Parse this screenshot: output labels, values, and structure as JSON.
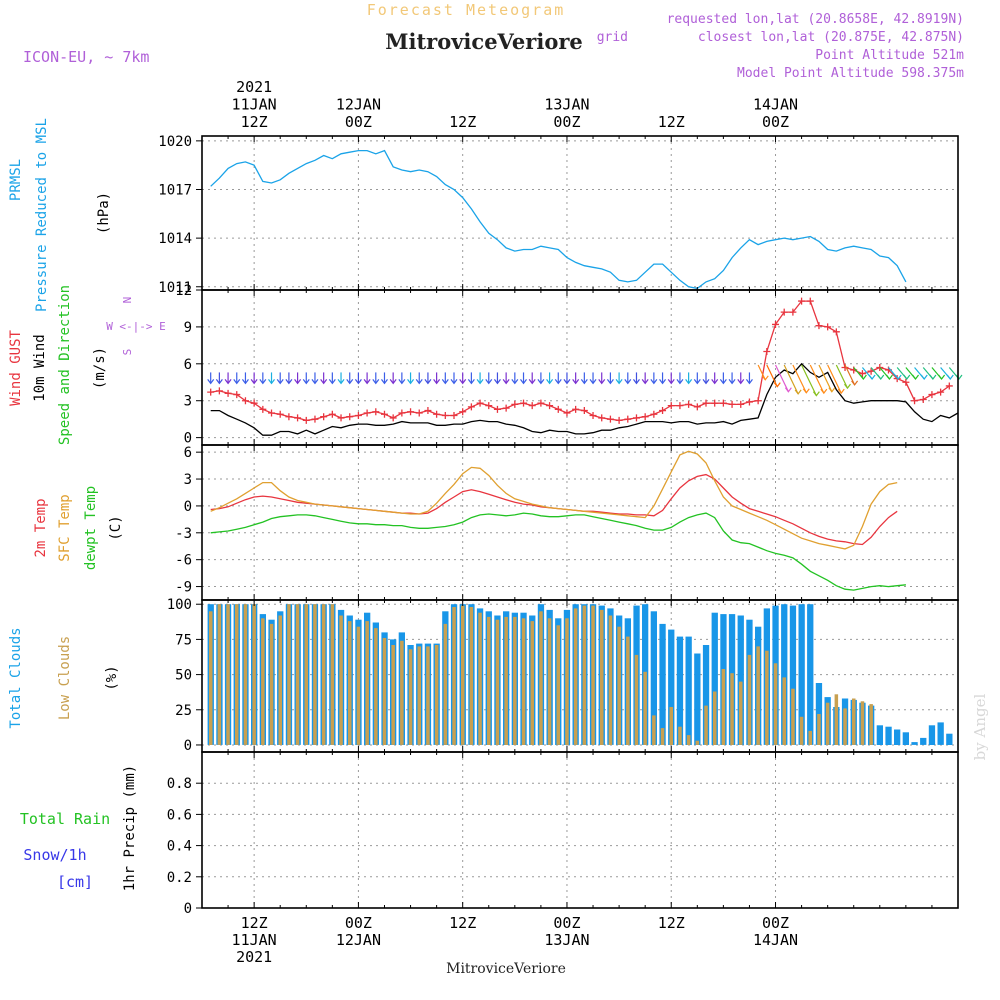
{
  "header": {
    "top_title": "Forecast Meteogram",
    "location": "MitroviceVeriore",
    "model": "ICON-EU, ~ 7km",
    "requested": "requested lon,lat (20.8658E, 42.8919N)",
    "closest": "closest lon,lat (20.875E, 42.875N)",
    "closest_prefix": "grid",
    "point_altitude": "Point Altitude 521m",
    "model_altitude": "Model Point Altitude 598.375m",
    "footer_location": "MitroviceVeriore",
    "watermark": "by Angel"
  },
  "time_axis": {
    "top_labels": [
      {
        "h": 6,
        "lines": [
          "2021",
          "11JAN",
          "12Z"
        ]
      },
      {
        "h": 18,
        "lines": [
          "12JAN",
          "00Z"
        ]
      },
      {
        "h": 30,
        "lines": [
          "12Z"
        ]
      },
      {
        "h": 42,
        "lines": [
          "13JAN",
          "00Z"
        ]
      },
      {
        "h": 54,
        "lines": [
          "12Z"
        ]
      },
      {
        "h": 66,
        "lines": [
          "14JAN",
          "00Z"
        ]
      }
    ],
    "bottom_labels": [
      {
        "h": 6,
        "lines": [
          "12Z",
          "11JAN",
          "2021"
        ]
      },
      {
        "h": 18,
        "lines": [
          "00Z",
          "12JAN"
        ]
      },
      {
        "h": 30,
        "lines": [
          "12Z"
        ]
      },
      {
        "h": 42,
        "lines": [
          "00Z",
          "13JAN"
        ]
      },
      {
        "h": 54,
        "lines": [
          "12Z"
        ]
      },
      {
        "h": 66,
        "lines": [
          "00Z",
          "14JAN"
        ]
      }
    ]
  },
  "chart_data": [
    {
      "type": "line",
      "id": "pressure",
      "ylabel_lines": [
        "PRMSL",
        "Pressure Reduced to MSL",
        "(hPa)"
      ],
      "yticks": [
        1011,
        1014,
        1017,
        1020
      ],
      "ylim": [
        1010.8,
        1020.3
      ],
      "x_hours_start": 1,
      "x_step": 1,
      "series": [
        {
          "color": "#1aa3e8",
          "values": [
            1017.2,
            1017.7,
            1018.3,
            1018.6,
            1018.7,
            1018.5,
            1017.5,
            1017.4,
            1017.6,
            1018.0,
            1018.3,
            1018.6,
            1018.8,
            1019.1,
            1018.9,
            1019.2,
            1019.3,
            1019.4,
            1019.4,
            1019.2,
            1019.4,
            1018.4,
            1018.2,
            1018.1,
            1018.2,
            1018.1,
            1017.8,
            1017.3,
            1017.0,
            1016.5,
            1015.8,
            1015.0,
            1014.3,
            1013.9,
            1013.4,
            1013.2,
            1013.3,
            1013.3,
            1013.5,
            1013.4,
            1013.3,
            1012.8,
            1012.5,
            1012.3,
            1012.2,
            1012.1,
            1011.9,
            1011.4,
            1011.3,
            1011.4,
            1011.9,
            1012.4,
            1012.4,
            1011.9,
            1011.4,
            1011.0,
            1010.9,
            1011.3,
            1011.5,
            1012.0,
            1012.8,
            1013.4,
            1013.9,
            1013.6,
            1013.8,
            1013.9,
            1014.0,
            1013.9,
            1014.0,
            1014.1,
            1013.8,
            1013.3,
            1013.2,
            1013.4,
            1013.5,
            1013.4,
            1013.3,
            1012.9,
            1012.8,
            1012.3,
            1011.3
          ]
        }
      ]
    },
    {
      "type": "line",
      "id": "wind",
      "ylabel_lines": [
        "Wind GUST",
        "10m Wind",
        "Speed and Direction",
        "(m/s)"
      ],
      "yticks": [
        0,
        3,
        6,
        9,
        12
      ],
      "ylim": [
        -0.6,
        12
      ],
      "compass": [
        "N",
        "W <-|-> E",
        "S"
      ],
      "x_hours_start": 1,
      "x_step": 1,
      "series": [
        {
          "name": "Wind GUST",
          "color": "#e8353f",
          "marker": "+",
          "values": [
            3.7,
            3.8,
            3.6,
            3.5,
            3.0,
            2.8,
            2.3,
            2.0,
            1.9,
            1.7,
            1.6,
            1.4,
            1.5,
            1.7,
            1.9,
            1.6,
            1.7,
            1.8,
            2.0,
            2.1,
            1.9,
            1.6,
            2.0,
            2.1,
            2.0,
            2.2,
            1.9,
            1.8,
            1.8,
            2.1,
            2.5,
            2.8,
            2.6,
            2.3,
            2.4,
            2.7,
            2.8,
            2.6,
            2.8,
            2.6,
            2.3,
            2.0,
            2.3,
            2.2,
            1.8,
            1.6,
            1.5,
            1.4,
            1.5,
            1.6,
            1.7,
            1.9,
            2.2,
            2.6,
            2.6,
            2.7,
            2.5,
            2.8,
            2.8,
            2.8,
            2.7,
            2.7,
            2.9,
            3.0,
            7.0,
            9.2,
            10.2,
            10.2,
            11.1,
            11.1,
            9.1,
            9.0,
            8.6,
            5.7,
            5.5,
            5.2,
            5.4,
            5.7,
            5.5,
            4.8,
            4.5,
            3.0,
            3.1,
            3.5,
            3.7,
            4.2
          ]
        },
        {
          "name": "10m Wind",
          "color": "#000000",
          "values": [
            2.2,
            2.2,
            1.8,
            1.5,
            1.2,
            0.8,
            0.2,
            0.2,
            0.5,
            0.5,
            0.3,
            0.6,
            0.3,
            0.6,
            0.9,
            0.8,
            1.0,
            1.1,
            1.1,
            1.0,
            1.0,
            1.1,
            1.3,
            1.2,
            1.2,
            1.2,
            1.0,
            1.0,
            1.1,
            1.1,
            1.3,
            1.4,
            1.3,
            1.3,
            1.1,
            1.0,
            0.8,
            0.5,
            0.4,
            0.6,
            0.5,
            0.5,
            0.3,
            0.3,
            0.4,
            0.6,
            0.6,
            0.8,
            0.9,
            1.1,
            1.3,
            1.3,
            1.3,
            1.2,
            1.3,
            1.3,
            1.1,
            1.2,
            1.2,
            1.3,
            1.1,
            1.4,
            1.5,
            1.6,
            3.5,
            4.9,
            5.5,
            5.2,
            6.0,
            5.3,
            4.9,
            5.3,
            3.9,
            3.0,
            2.8,
            2.9,
            3.0,
            3.0,
            3.0,
            3.0,
            2.9,
            2.1,
            1.5,
            1.3,
            1.8,
            1.6,
            2.0
          ]
        },
        {
          "name": "Speed and Direction",
          "color": "#23c223"
        }
      ]
    },
    {
      "type": "line",
      "id": "temperature",
      "ylabel_lines": [
        "2m Temp",
        "SFC Temp",
        "dewpt Temp",
        "(C)"
      ],
      "yticks": [
        -9,
        -6,
        -3,
        0,
        3,
        6
      ],
      "ylim": [
        -10.5,
        6.8
      ],
      "x_hours_start": 1,
      "x_step": 1,
      "series": [
        {
          "name": "2m Temp",
          "color": "#e8353f",
          "values": [
            -0.4,
            -0.3,
            -0.1,
            0.3,
            0.7,
            1.0,
            1.1,
            1.0,
            0.8,
            0.6,
            0.4,
            0.3,
            0.2,
            0.1,
            0.0,
            -0.1,
            -0.2,
            -0.3,
            -0.4,
            -0.5,
            -0.6,
            -0.7,
            -0.8,
            -0.8,
            -0.9,
            -0.8,
            -0.3,
            0.4,
            1.0,
            1.6,
            1.8,
            1.6,
            1.3,
            1.0,
            0.7,
            0.4,
            0.2,
            0.1,
            -0.1,
            -0.2,
            -0.3,
            -0.4,
            -0.5,
            -0.6,
            -0.6,
            -0.7,
            -0.8,
            -0.9,
            -0.9,
            -1.0,
            -1.0,
            -1.1,
            -0.5,
            0.8,
            2.0,
            2.8,
            3.3,
            3.5,
            3.0,
            2.0,
            1.0,
            0.3,
            -0.3,
            -0.6,
            -0.9,
            -1.2,
            -1.6,
            -2.0,
            -2.5,
            -3.0,
            -3.4,
            -3.7,
            -3.9,
            -4.0,
            -4.2,
            -4.3,
            -3.5,
            -2.3,
            -1.3,
            -0.6
          ]
        },
        {
          "name": "SFC Temp",
          "color": "#e0a030",
          "values": [
            -0.6,
            -0.2,
            0.3,
            0.8,
            1.4,
            2.0,
            2.6,
            2.6,
            1.7,
            1.0,
            0.6,
            0.4,
            0.2,
            0.1,
            0.0,
            -0.1,
            -0.2,
            -0.3,
            -0.4,
            -0.5,
            -0.6,
            -0.7,
            -0.8,
            -0.9,
            -0.9,
            -0.6,
            0.3,
            1.4,
            2.4,
            3.6,
            4.3,
            4.2,
            3.4,
            2.3,
            1.4,
            0.8,
            0.5,
            0.2,
            0.0,
            -0.2,
            -0.3,
            -0.4,
            -0.5,
            -0.6,
            -0.7,
            -0.8,
            -0.9,
            -1.0,
            -1.1,
            -1.2,
            -1.3,
            0.0,
            1.9,
            3.8,
            5.7,
            6.1,
            5.8,
            4.8,
            2.8,
            1.0,
            0.0,
            -0.4,
            -0.8,
            -1.2,
            -1.6,
            -2.1,
            -2.6,
            -3.1,
            -3.6,
            -3.9,
            -4.2,
            -4.4,
            -4.6,
            -4.8,
            -4.4,
            -2.3,
            0.2,
            1.6,
            2.4,
            2.6
          ]
        },
        {
          "name": "dewpt Temp",
          "color": "#23c223",
          "values": [
            -3.0,
            -2.9,
            -2.8,
            -2.6,
            -2.4,
            -2.1,
            -1.8,
            -1.4,
            -1.2,
            -1.1,
            -1.0,
            -1.0,
            -1.1,
            -1.3,
            -1.5,
            -1.7,
            -1.9,
            -2.0,
            -2.0,
            -2.1,
            -2.1,
            -2.2,
            -2.2,
            -2.4,
            -2.5,
            -2.5,
            -2.4,
            -2.3,
            -2.1,
            -1.8,
            -1.3,
            -1.0,
            -0.9,
            -1.0,
            -1.1,
            -1.0,
            -0.8,
            -0.9,
            -1.1,
            -1.2,
            -1.2,
            -1.1,
            -1.0,
            -1.0,
            -1.2,
            -1.4,
            -1.6,
            -1.8,
            -2.0,
            -2.2,
            -2.5,
            -2.7,
            -2.7,
            -2.4,
            -1.8,
            -1.3,
            -1.0,
            -0.8,
            -1.3,
            -2.8,
            -3.8,
            -4.1,
            -4.2,
            -4.6,
            -5.0,
            -5.3,
            -5.5,
            -5.8,
            -6.5,
            -7.3,
            -7.8,
            -8.3,
            -8.9,
            -9.3,
            -9.4,
            -9.2,
            -9.0,
            -8.9,
            -9.0,
            -8.9,
            -8.8
          ]
        }
      ]
    },
    {
      "type": "bar",
      "id": "clouds",
      "ylabel_lines": [
        "Total Clouds",
        "Low Clouds",
        "(%)"
      ],
      "yticks": [
        0,
        25,
        50,
        75,
        100
      ],
      "ylim": [
        -5,
        103
      ],
      "x_hours_start": 1,
      "x_step": 1,
      "series": [
        {
          "name": "Total Clouds",
          "color": "#1896e8",
          "values": [
            100,
            100,
            100,
            100,
            100,
            100,
            93,
            89,
            95,
            100,
            100,
            100,
            100,
            100,
            100,
            96,
            92,
            89,
            94,
            87,
            80,
            75,
            80,
            71,
            72,
            72,
            72,
            95,
            100,
            100,
            100,
            97,
            95,
            92,
            95,
            94,
            94,
            92,
            100,
            96,
            90,
            96,
            100,
            100,
            100,
            99,
            97,
            92,
            90,
            99,
            100,
            95,
            86,
            82,
            77,
            77,
            65,
            71,
            94,
            93,
            93,
            92,
            89,
            84,
            97,
            99,
            100,
            99,
            100,
            100,
            44,
            34,
            27,
            33,
            32,
            30,
            28,
            14,
            13,
            11,
            9,
            2,
            5,
            14,
            16,
            8
          ]
        },
        {
          "name": "Low Clouds",
          "color": "#c8a050",
          "values": [
            95,
            100,
            100,
            100,
            100,
            100,
            90,
            86,
            92,
            100,
            100,
            100,
            100,
            100,
            100,
            92,
            88,
            84,
            88,
            83,
            76,
            71,
            74,
            68,
            70,
            70,
            71,
            86,
            98,
            99,
            98,
            94,
            91,
            89,
            91,
            91,
            90,
            88,
            95,
            90,
            85,
            90,
            97,
            99,
            99,
            96,
            92,
            84,
            77,
            64,
            52,
            21,
            12,
            27,
            13,
            7,
            3,
            28,
            38,
            54,
            51,
            45,
            64,
            70,
            67,
            58,
            48,
            40,
            20,
            10,
            22,
            30,
            36,
            26,
            33,
            31,
            29,
            0,
            0,
            0,
            0,
            0,
            0,
            0,
            0,
            0
          ]
        }
      ]
    },
    {
      "type": "bar",
      "id": "precip",
      "ylabel_lines": [
        "Total Rain",
        "Snow/1h",
        "[cm]",
        "1hr Precip (mm)"
      ],
      "yticks": [
        0,
        0.2,
        0.4,
        0.6,
        0.8
      ],
      "ylim": [
        0,
        1.0
      ],
      "series": [
        {
          "name": "Total Rain",
          "color": "#23c223",
          "values": []
        },
        {
          "name": "Snow/1h",
          "color": "#3838e8",
          "values": []
        }
      ]
    }
  ]
}
